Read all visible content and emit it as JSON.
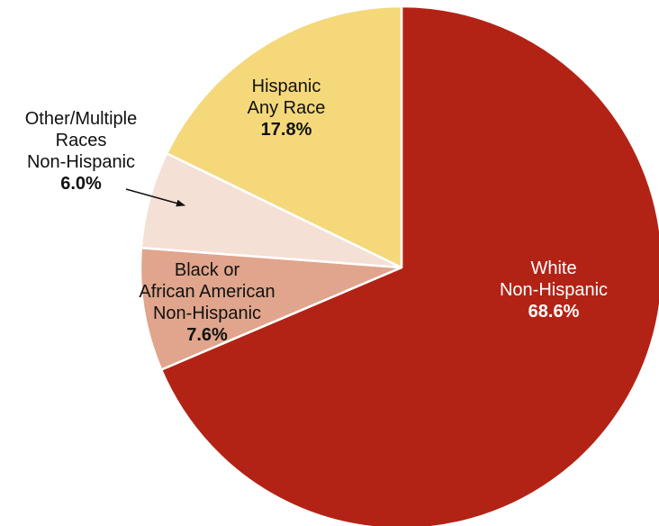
{
  "chart_data": {
    "type": "pie",
    "start": "12 o'clock, clockwise",
    "slices": [
      {
        "label_lines": [
          "White",
          "Non-Hispanic"
        ],
        "value": 68.6,
        "value_label": "68.6%",
        "color": "#b22316",
        "text_color": "#ffffff"
      },
      {
        "label_lines": [
          "Black or",
          "African American",
          "Non-Hispanic"
        ],
        "value": 7.6,
        "value_label": "7.6%",
        "color": "#e0a58c",
        "text_color": "#111111"
      },
      {
        "label_lines": [
          "Other/Multiple",
          "Races",
          "Non-Hispanic"
        ],
        "value": 6.0,
        "value_label": "6.0%",
        "color": "#f5e0d6",
        "text_color": "#111111"
      },
      {
        "label_lines": [
          "Hispanic",
          "Any Race"
        ],
        "value": 17.8,
        "value_label": "17.8%",
        "color": "#f4d87a",
        "text_color": "#111111"
      }
    ]
  }
}
